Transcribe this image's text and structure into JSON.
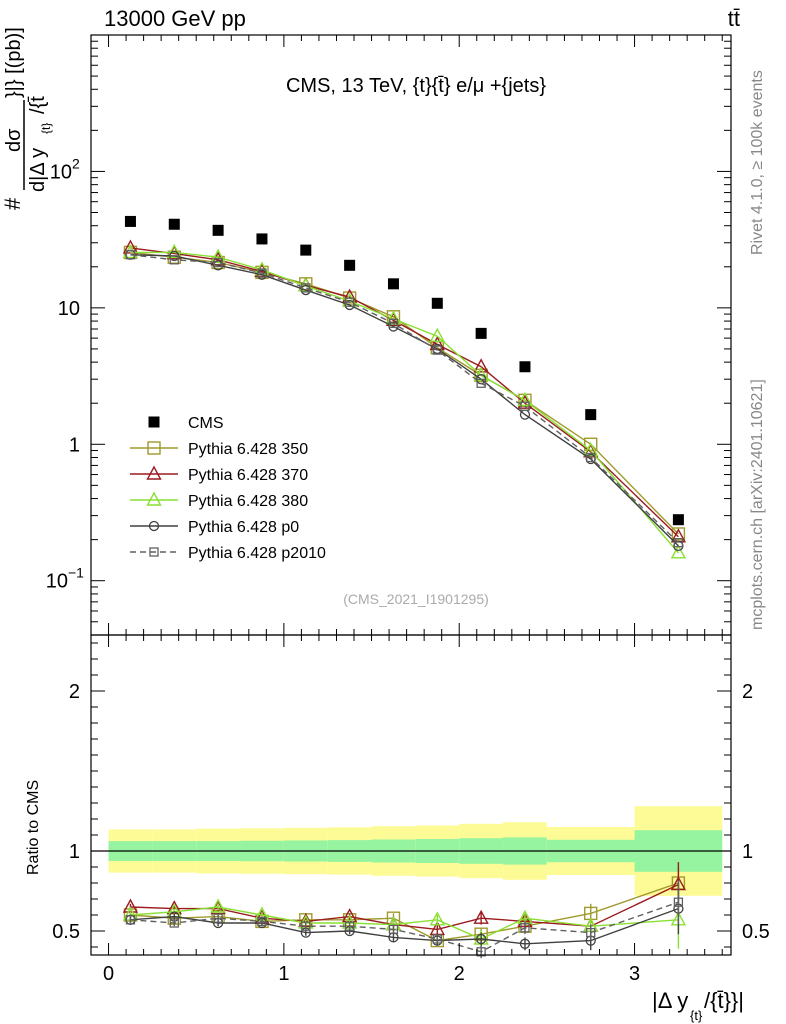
{
  "header": {
    "energy_label": "13000 GeV pp",
    "process_label": "tt̄"
  },
  "side_labels": {
    "rivet": "Rivet 4.1.0, ≥ 100k events",
    "source": "mcplots.cern.ch [arXiv:2401.10621]"
  },
  "chart_data": [
    {
      "type": "line",
      "panel": "main",
      "title": "CMS, 13 TeV, {t}{t̄} e/μ +{jets}",
      "analysis_tag": "(CMS_2021_I1901295)",
      "ylabel_lines": [
        "dσ",
        "#",
        "d|Δ y",
        "{t}",
        "/{t̄",
        "}|} [(pb)]"
      ],
      "yscale": "log",
      "ylim": [
        0.04,
        1000
      ],
      "xlim": [
        -0.1,
        3.55
      ],
      "y_ticks": [
        {
          "value": 0.1,
          "base": "10",
          "exp": "−1"
        },
        {
          "value": 1,
          "label": "1"
        },
        {
          "value": 10,
          "label": "10"
        },
        {
          "value": 100,
          "base": "10",
          "exp": "2"
        }
      ],
      "bin_edges": [
        0,
        0.25,
        0.5,
        0.75,
        1.0,
        1.25,
        1.5,
        1.75,
        2.0,
        2.25,
        2.5,
        3.0,
        3.5
      ],
      "x": [
        0.125,
        0.375,
        0.625,
        0.875,
        1.125,
        1.375,
        1.625,
        1.875,
        2.125,
        2.375,
        2.75,
        3.25
      ],
      "series": [
        {
          "name": "CMS",
          "color": "#000000",
          "marker": "filled-square",
          "line": "none",
          "values": [
            43,
            41,
            37,
            32,
            26.5,
            20.5,
            15,
            10.8,
            6.5,
            3.7,
            1.65,
            0.28
          ]
        },
        {
          "name": "Pythia 6.428 350",
          "color": "#a09a2c",
          "marker": "open-square",
          "line": "solid",
          "values": [
            25.5,
            23.5,
            21.5,
            18.2,
            15,
            11.8,
            8.6,
            5.1,
            3.2,
            2.1,
            1.0,
            0.22
          ]
        },
        {
          "name": "Pythia 6.428 370",
          "color": "#9b1b1f",
          "marker": "open-triangle",
          "line": "solid",
          "values": [
            27.5,
            25,
            22.5,
            18.5,
            14.6,
            12,
            8.1,
            5.4,
            3.7,
            2.0,
            0.88,
            0.21
          ]
        },
        {
          "name": "Pythia 6.428 380",
          "color": "#88e032",
          "marker": "open-triangle",
          "line": "solid",
          "values": [
            25.5,
            25.5,
            23.5,
            19,
            14.5,
            11.2,
            8.3,
            6.2,
            3.2,
            2.1,
            0.9,
            0.16
          ]
        },
        {
          "name": "Pythia 6.428 p0",
          "color": "#404040",
          "marker": "open-circle",
          "line": "solid",
          "values": [
            24.5,
            24,
            20.5,
            17.5,
            13.5,
            10.5,
            7.3,
            5.0,
            3.0,
            1.65,
            0.78,
            0.18
          ]
        },
        {
          "name": "Pythia 6.428 p2010",
          "color": "#606060",
          "marker": "open-square-small",
          "line": "dashed",
          "values": [
            24.5,
            22.5,
            21.5,
            18,
            14,
            11,
            7.7,
            4.9,
            2.8,
            1.9,
            0.8,
            0.19
          ]
        }
      ]
    },
    {
      "type": "line",
      "panel": "ratio",
      "ylabel": "Ratio to CMS",
      "xlabel": "|Δ y",
      "xlabel_sub": "{t}",
      "xlabel_tail": "/{t̄}}|",
      "ylim": [
        0.35,
        2.35
      ],
      "xlim": [
        -0.1,
        3.55
      ],
      "x_ticks": [
        0,
        1,
        2,
        3
      ],
      "y_ticks": [
        0.5,
        1,
        2
      ],
      "bin_edges": [
        0,
        0.25,
        0.5,
        0.75,
        1.0,
        1.25,
        1.5,
        1.75,
        2.0,
        2.25,
        2.5,
        3.0,
        3.5
      ],
      "x": [
        0.125,
        0.375,
        0.625,
        0.875,
        1.125,
        1.375,
        1.625,
        1.875,
        2.125,
        2.375,
        2.75,
        3.25
      ],
      "band_inner": [
        0.062,
        0.062,
        0.062,
        0.064,
        0.066,
        0.068,
        0.072,
        0.075,
        0.08,
        0.085,
        0.07,
        0.13
      ],
      "band_outer": [
        0.135,
        0.135,
        0.14,
        0.142,
        0.145,
        0.148,
        0.155,
        0.16,
        0.17,
        0.18,
        0.15,
        0.28
      ],
      "series": [
        {
          "name": "Pythia 6.428 350",
          "color": "#a09a2c",
          "marker": "open-square",
          "line": "solid",
          "values": [
            0.6,
            0.58,
            0.59,
            0.56,
            0.57,
            0.57,
            0.58,
            0.44,
            0.48,
            0.53,
            0.61,
            0.8
          ],
          "errors": [
            0.02,
            0.02,
            0.02,
            0.02,
            0.02,
            0.02,
            0.03,
            0.03,
            0.04,
            0.04,
            0.06,
            0.1
          ]
        },
        {
          "name": "Pythia 6.428 370",
          "color": "#9b1b1f",
          "marker": "open-triangle",
          "line": "solid",
          "values": [
            0.65,
            0.64,
            0.64,
            0.58,
            0.56,
            0.59,
            0.54,
            0.51,
            0.58,
            0.56,
            0.53,
            0.79
          ],
          "errors": [
            0.02,
            0.02,
            0.02,
            0.02,
            0.02,
            0.02,
            0.03,
            0.03,
            0.04,
            0.04,
            0.05,
            0.14
          ]
        },
        {
          "name": "Pythia 6.428 380",
          "color": "#88e032",
          "marker": "open-triangle",
          "line": "solid",
          "values": [
            0.6,
            0.62,
            0.65,
            0.6,
            0.55,
            0.55,
            0.54,
            0.57,
            0.45,
            0.58,
            0.53,
            0.57
          ],
          "errors": [
            0.02,
            0.02,
            0.02,
            0.02,
            0.02,
            0.02,
            0.03,
            0.03,
            0.05,
            0.04,
            0.05,
            0.18
          ]
        },
        {
          "name": "Pythia 6.428 p0",
          "color": "#404040",
          "marker": "open-circle",
          "line": "solid",
          "values": [
            0.57,
            0.59,
            0.55,
            0.55,
            0.49,
            0.5,
            0.46,
            0.44,
            0.45,
            0.42,
            0.44,
            0.64
          ],
          "errors": [
            0.02,
            0.02,
            0.02,
            0.02,
            0.02,
            0.02,
            0.03,
            0.03,
            0.04,
            0.04,
            0.06,
            0.16
          ]
        },
        {
          "name": "Pythia 6.428 p2010",
          "color": "#606060",
          "marker": "open-square-small",
          "line": "dashed",
          "values": [
            0.57,
            0.55,
            0.58,
            0.56,
            0.53,
            0.53,
            0.51,
            0.45,
            0.37,
            0.52,
            0.49,
            0.68
          ],
          "errors": [
            0.02,
            0.02,
            0.02,
            0.02,
            0.02,
            0.02,
            0.03,
            0.03,
            0.04,
            0.04,
            0.05,
            0.14
          ]
        }
      ]
    }
  ]
}
